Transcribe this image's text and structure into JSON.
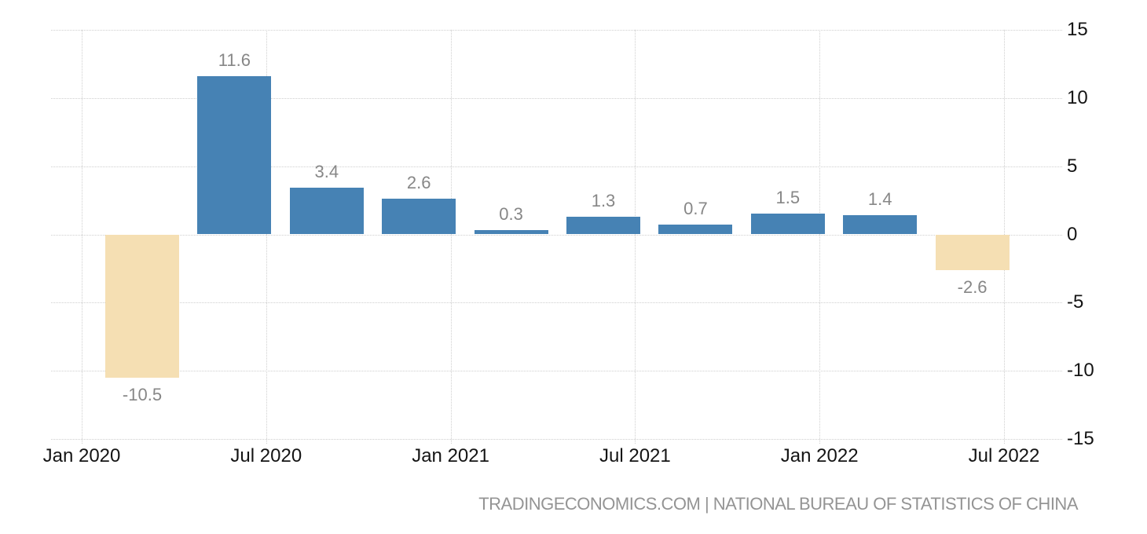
{
  "chart_data": {
    "type": "bar",
    "title": "",
    "points": [
      {
        "period": "2020-Q1",
        "value": -10.5,
        "label": "-10.5"
      },
      {
        "period": "2020-Q2",
        "value": 11.6,
        "label": "11.6"
      },
      {
        "period": "2020-Q3",
        "value": 3.4,
        "label": "3.4"
      },
      {
        "period": "2020-Q4",
        "value": 2.6,
        "label": "2.6"
      },
      {
        "period": "2021-Q1",
        "value": 0.3,
        "label": "0.3"
      },
      {
        "period": "2021-Q2",
        "value": 1.3,
        "label": "1.3"
      },
      {
        "period": "2021-Q3",
        "value": 0.7,
        "label": "0.7"
      },
      {
        "period": "2021-Q4",
        "value": 1.5,
        "label": "1.5"
      },
      {
        "period": "2022-Q1",
        "value": 1.4,
        "label": "1.4"
      },
      {
        "period": "2022-Q2",
        "value": -2.6,
        "label": "-2.6"
      }
    ],
    "x_tick_labels": [
      "Jan 2020",
      "Jul 2020",
      "Jan 2021",
      "Jul 2021",
      "Jan 2022",
      "Jul 2022"
    ],
    "y_tick_labels": [
      "15",
      "10",
      "5",
      "0",
      "-5",
      "-10",
      "-15"
    ],
    "y_ticks": [
      15,
      10,
      5,
      0,
      -5,
      -10,
      -15
    ],
    "ylim": [
      -15,
      15
    ],
    "grid": "dotted",
    "legend": "none",
    "colors": {
      "positive_bar": "#4682B4",
      "negative_bar": "#F5DFB3",
      "value_label": "#878787",
      "axis_label": "#141414",
      "gridline": "#CFCFCF",
      "footer_text": "#949494"
    }
  },
  "footer": {
    "source": "TRADINGECONOMICS.COM | NATIONAL BUREAU OF STATISTICS OF CHINA"
  }
}
